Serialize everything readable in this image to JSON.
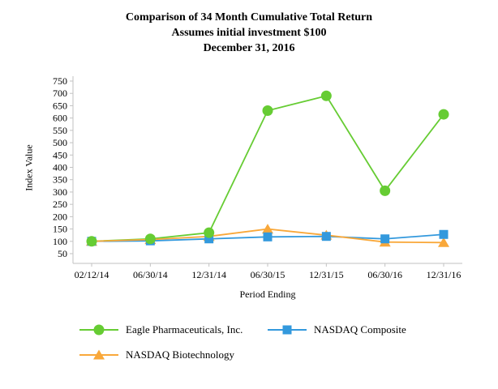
{
  "title": {
    "line1": "Comparison of 34 Month Cumulative Total Return",
    "line2": "Assumes initial investment $100",
    "line3": "December 31, 2016"
  },
  "chart_data": {
    "type": "line",
    "title": "Comparison of 34 Month Cumulative Total Return; Assumes initial investment $100; December 31, 2016",
    "xlabel": "Period Ending",
    "ylabel": "Index Value",
    "categories": [
      "02/12/14",
      "06/30/14",
      "12/31/14",
      "06/30/15",
      "12/31/15",
      "06/30/16",
      "12/31/16"
    ],
    "series": [
      {
        "name": "Eagle Pharmaceuticals, Inc.",
        "marker": "circle",
        "color": "#66cc33",
        "values": [
          100,
          110,
          135,
          630,
          690,
          305,
          615
        ]
      },
      {
        "name": "NASDAQ Composite",
        "marker": "square",
        "color": "#3399dd",
        "values": [
          100,
          102,
          110,
          118,
          120,
          110,
          128
        ]
      },
      {
        "name": "NASDAQ Biotechnology",
        "marker": "triangle",
        "color": "#f9a83a",
        "values": [
          100,
          107,
          120,
          150,
          125,
          97,
          95
        ]
      }
    ],
    "ylim": [
      50,
      750
    ],
    "ytick_step": 50,
    "grid": false,
    "axis_color": "#c2c2c2",
    "legend_position": "bottom"
  }
}
